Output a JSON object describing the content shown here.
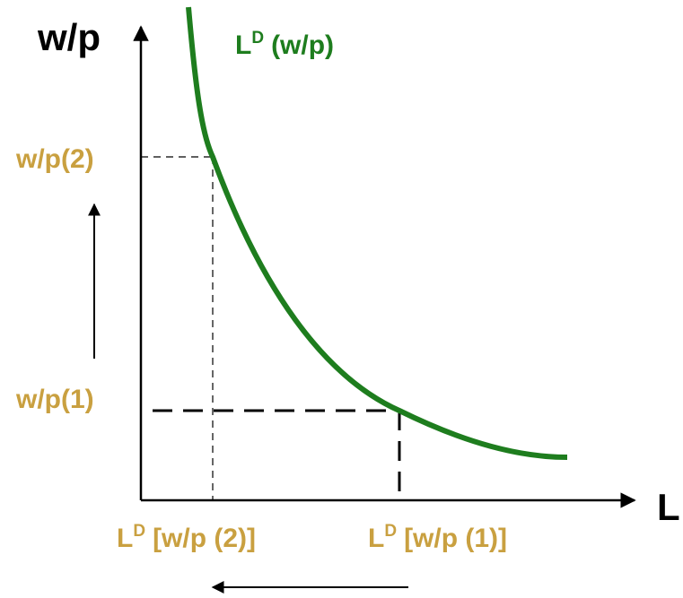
{
  "diagram": {
    "y_axis_label": "w/p",
    "x_axis_label": "L",
    "curve_label": {
      "base": "L",
      "sup": "D",
      "rest": "(w/p)"
    },
    "y_levels": [
      "w/p(2)",
      "w/p(1)"
    ],
    "x_levels": [
      {
        "base": "L",
        "sup": "D",
        "rest": "[w/p (2)]"
      },
      {
        "base": "L",
        "sup": "D",
        "rest": "[w/p (1)]"
      }
    ]
  }
}
